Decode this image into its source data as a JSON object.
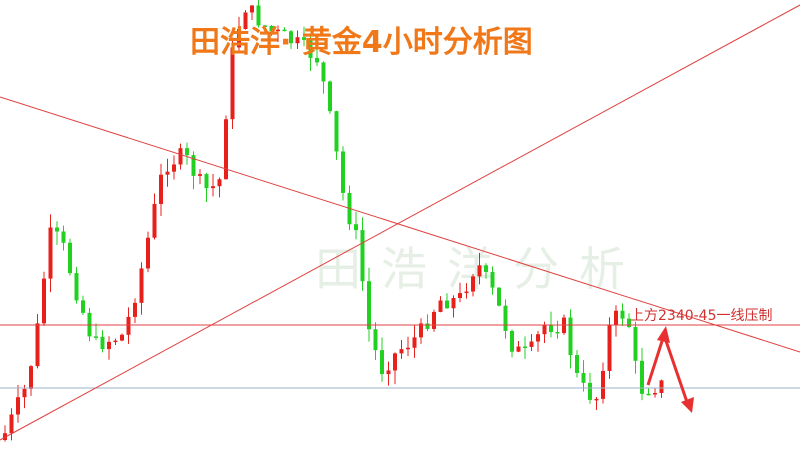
{
  "title": "田浩洋· 黄金4小时分析图",
  "watermark": "田浩洋分析",
  "annotation": "上方2340-45一线压制"
}
